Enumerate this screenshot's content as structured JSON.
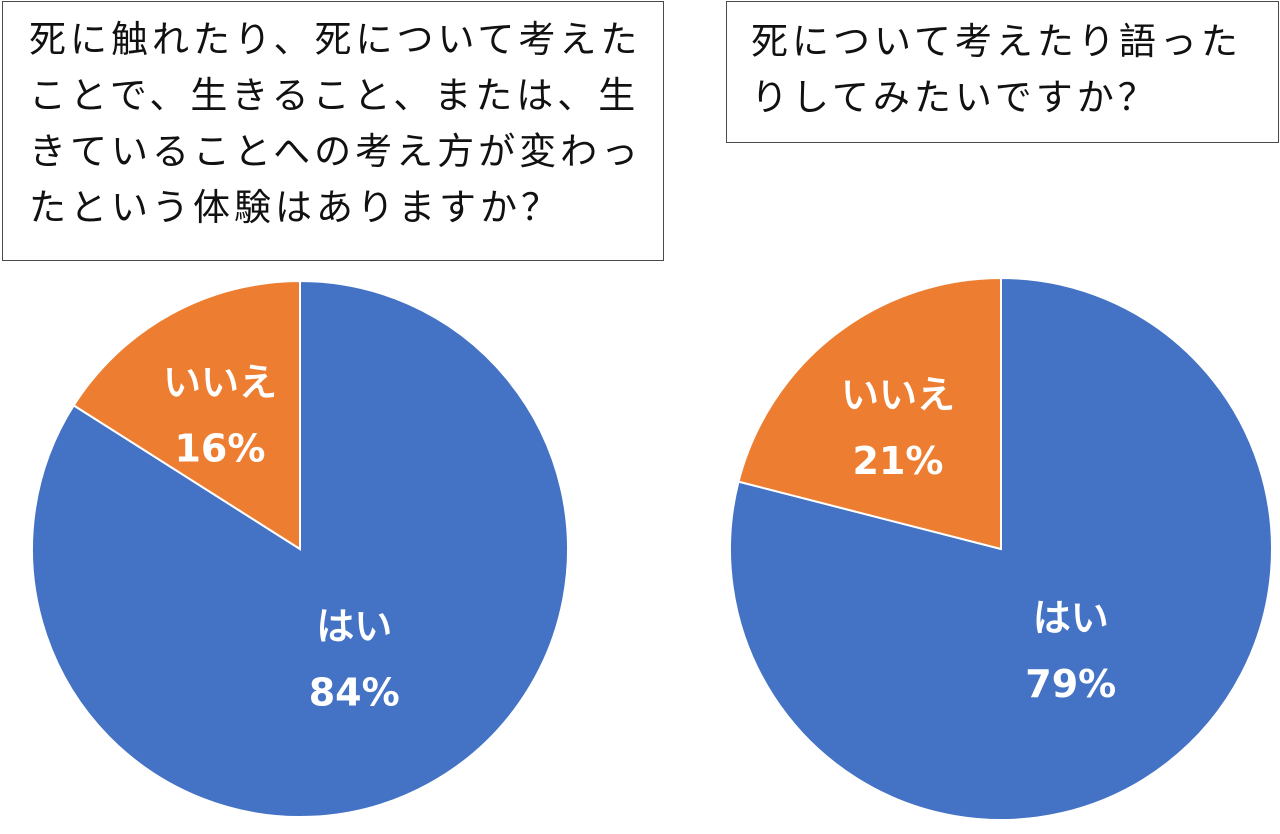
{
  "questions": {
    "q1": "死に触れたり、死について考えたことで、生きること、または、生きていることへの考え方が変わったという体験はありますか？",
    "q2": "死について考えたり語ったりしてみたいですか？"
  },
  "colors": {
    "yes": "#4472C4",
    "no": "#ED7D31",
    "border": "#ffffff"
  },
  "chart_data": [
    {
      "type": "pie",
      "title": "",
      "start_angle": "12 o'clock, clockwise",
      "slices": [
        {
          "label": "はい",
          "value": 84,
          "value_label": "84%",
          "color": "#4472C4"
        },
        {
          "label": "いいえ",
          "value": 16,
          "value_label": "16%",
          "color": "#ED7D31"
        }
      ],
      "legend": "none"
    },
    {
      "type": "pie",
      "title": "",
      "start_angle": "12 o'clock, clockwise",
      "slices": [
        {
          "label": "はい",
          "value": 79,
          "value_label": "79%",
          "color": "#4472C4"
        },
        {
          "label": "いいえ",
          "value": 21,
          "value_label": "21%",
          "color": "#ED7D31"
        }
      ],
      "legend": "none"
    }
  ]
}
